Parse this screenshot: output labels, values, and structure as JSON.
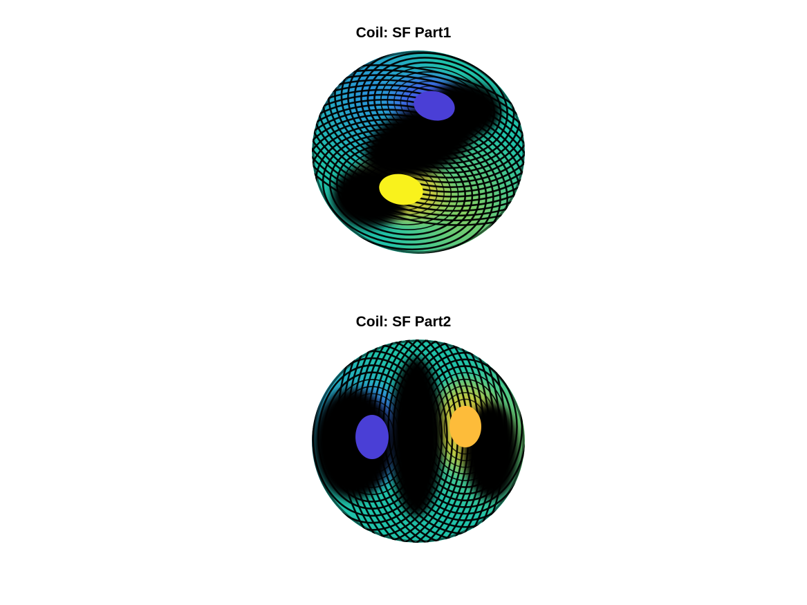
{
  "chart_data": [
    {
      "type": "contour",
      "title": "Coil: SF Part1",
      "xlabel": "",
      "ylabel": "",
      "axes_visible": false,
      "surface": "sphere",
      "colormap": "parula",
      "background_color": "#20c2a9",
      "contour_color": "#000000",
      "extrema": [
        {
          "kind": "min",
          "color": "#4a3fd6",
          "location": "upper-right"
        },
        {
          "kind": "max",
          "color": "#f9f21c",
          "location": "lower-left"
        }
      ]
    },
    {
      "type": "contour",
      "title": "Coil: SF Part2",
      "xlabel": "",
      "ylabel": "",
      "axes_visible": false,
      "surface": "sphere",
      "colormap": "parula",
      "background_color": "#20c2a9",
      "contour_color": "#000000",
      "extrema": [
        {
          "kind": "min",
          "color": "#4a3fd6",
          "location": "left"
        },
        {
          "kind": "max",
          "color": "#fdbc3a",
          "location": "right"
        }
      ]
    }
  ]
}
